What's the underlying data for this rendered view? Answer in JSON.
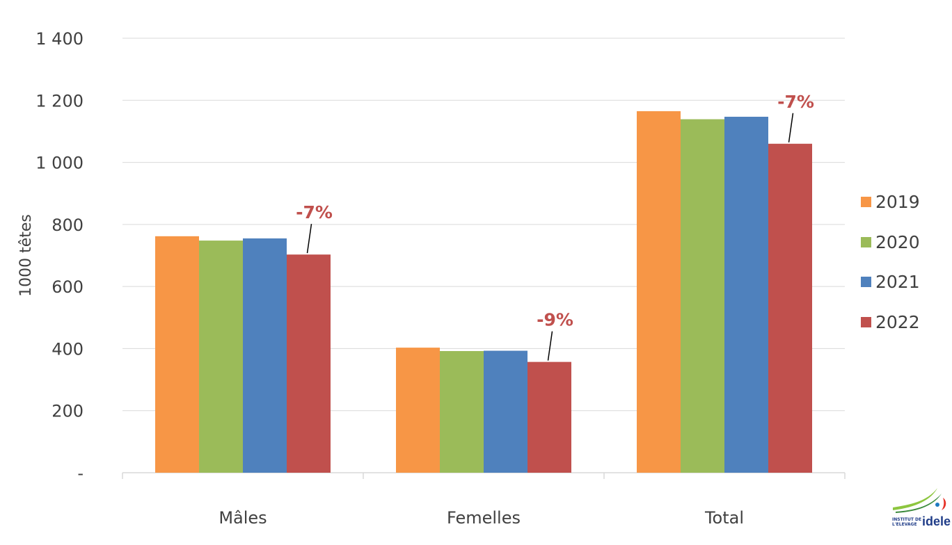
{
  "chart_data": {
    "type": "bar",
    "categories": [
      "Mâles",
      "Femelles",
      "Total"
    ],
    "series": [
      {
        "name": "2019",
        "color": "#f79646",
        "values": [
          762,
          403,
          1165
        ]
      },
      {
        "name": "2020",
        "color": "#9bbb59",
        "values": [
          748,
          392,
          1139
        ]
      },
      {
        "name": "2021",
        "color": "#4f81bd",
        "values": [
          755,
          393,
          1147
        ]
      },
      {
        "name": "2022",
        "color": "#c0504d",
        "values": [
          703,
          357,
          1060
        ]
      }
    ],
    "ylabel": "1000 têtes",
    "ylim": [
      0,
      1400
    ],
    "yticks": [
      0,
      200,
      400,
      600,
      800,
      1000,
      1200,
      1400
    ],
    "ytick_labels": [
      "-",
      "200",
      "400",
      "600",
      "800",
      "1 000",
      "1 200",
      "1 400"
    ],
    "grid": true,
    "legend_position": "right",
    "annotations": [
      {
        "category": "Mâles",
        "series": "2022",
        "text": "-7%"
      },
      {
        "category": "Femelles",
        "series": "2022",
        "text": "-9%"
      },
      {
        "category": "Total",
        "series": "2022",
        "text": "-7%"
      }
    ]
  },
  "logo": {
    "line1": "INSTITUT DE",
    "line2": "L'ELEVAGE",
    "name": "idele"
  }
}
